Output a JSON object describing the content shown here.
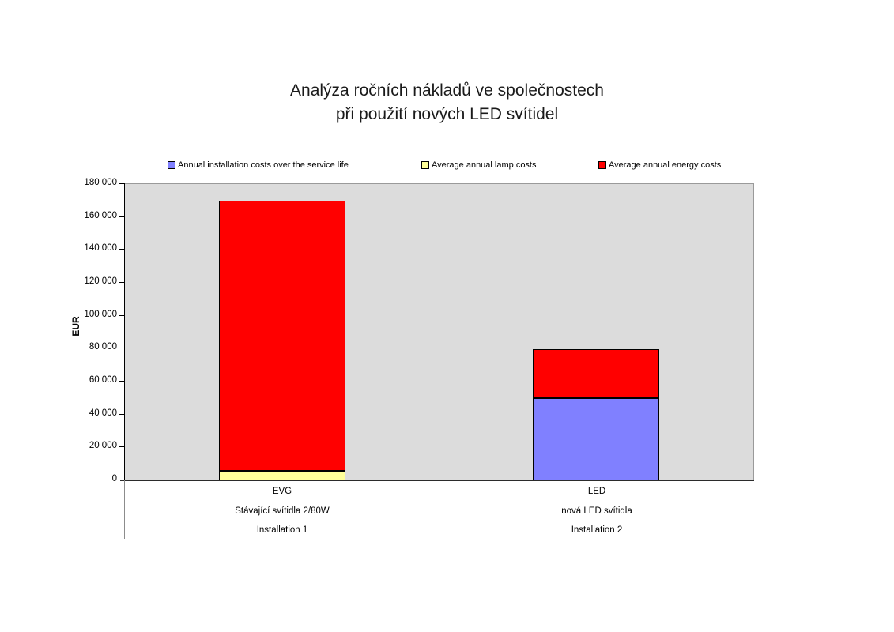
{
  "chart_data": {
    "type": "bar",
    "stacked": true,
    "title": "Analýza ročních nákladů ve společnostech při použití nových LED svítidel",
    "title_lines": [
      "Analýza ročních nákladů ve společnostech",
      "při použití nových LED svítidel"
    ],
    "ylabel": "EUR",
    "xlabel": "",
    "ylim": [
      0,
      180000
    ],
    "grid": false,
    "legend_position": "top",
    "plot_background": "#DCDCDC",
    "ytick_values": [
      0,
      20000,
      40000,
      60000,
      80000,
      100000,
      120000,
      140000,
      160000,
      180000
    ],
    "ytick_labels": [
      "0",
      "20 000",
      "40 000",
      "60 000",
      "80 000",
      "100 000",
      "120 000",
      "140 000",
      "160 000",
      "180 000"
    ],
    "categories": [
      {
        "lines": [
          "EVG",
          "Stávající svítidla 2/80W",
          "Installation 1"
        ]
      },
      {
        "lines": [
          "LED",
          "nová LED svítidla",
          "Installation 2"
        ]
      }
    ],
    "series": [
      {
        "name": "Annual installation costs over the service life",
        "color": "#8080FF",
        "values": [
          0,
          50000
        ]
      },
      {
        "name": "Average annual lamp costs",
        "color": "#FFFF99",
        "values": [
          6000,
          0
        ]
      },
      {
        "name": "Average annual energy costs",
        "color": "#FF0000",
        "values": [
          164000,
          29500
        ]
      }
    ]
  }
}
